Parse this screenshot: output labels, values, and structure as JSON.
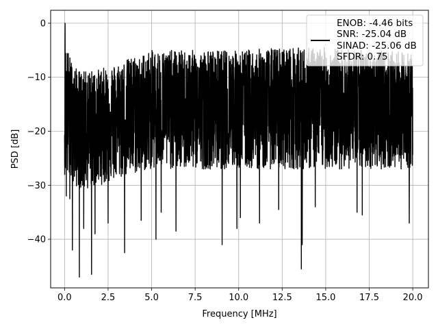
{
  "chart_data": {
    "type": "line",
    "title": "",
    "xlabel": "Frequency [MHz]",
    "ylabel": "PSD [dB]",
    "xlim": [
      -0.8,
      20.9
    ],
    "ylim": [
      -49.0,
      2.4
    ],
    "xticks": [
      0.0,
      2.5,
      5.0,
      7.5,
      10.0,
      12.5,
      15.0,
      17.5,
      20.0
    ],
    "xtick_labels": [
      "0.0",
      "2.5",
      "5.0",
      "7.5",
      "10.0",
      "12.5",
      "15.0",
      "17.5",
      "20.0"
    ],
    "yticks": [
      0,
      -10,
      -20,
      -30,
      -40
    ],
    "ytick_labels": [
      "0",
      "−10",
      "−20",
      "−30",
      "−40"
    ],
    "grid": true,
    "legend_position": "top-right",
    "legend": {
      "lines": [
        "ENOB: -4.46 bits",
        "SNR: -25.04 dB",
        "SINAD: -25.06 dB",
        "SFDR: 0.75"
      ]
    },
    "series": [
      {
        "color": "#000000",
        "x_range": [
          0.0,
          20.0
        ],
        "band_envelope": {
          "x": [
            0.0,
            0.5,
            1.0,
            2.0,
            3.0,
            4.0,
            5.0,
            7.5,
            10.0,
            12.5,
            15.0,
            17.5,
            20.0
          ],
          "upper": [
            -3.0,
            -8.0,
            -9.0,
            -8.5,
            -7.5,
            -6.0,
            -5.0,
            -5.0,
            -5.0,
            -4.5,
            -4.5,
            -5.0,
            -5.5
          ],
          "lower": [
            -28.0,
            -30.0,
            -31.0,
            -30.0,
            -29.0,
            -28.0,
            -27.0,
            -27.0,
            -27.0,
            -27.0,
            -27.0,
            -27.0,
            -27.0
          ],
          "median": [
            -16.0,
            -17.5,
            -18.0,
            -17.5,
            -17.0,
            -16.5,
            -16.0,
            -16.0,
            -16.0,
            -15.5,
            -15.5,
            -15.5,
            -16.0
          ]
        },
        "peaks": [
          {
            "x": 0.03,
            "y": 0.0
          },
          {
            "x": 0.1,
            "y": -3.5
          },
          {
            "x": 0.25,
            "y": -9.0
          }
        ],
        "dips": [
          {
            "x": 0.1,
            "y": -32.0
          },
          {
            "x": 0.3,
            "y": -32.5
          },
          {
            "x": 0.45,
            "y": -42.0
          },
          {
            "x": 0.85,
            "y": -47.0
          },
          {
            "x": 1.1,
            "y": -38.0
          },
          {
            "x": 1.55,
            "y": -46.5
          },
          {
            "x": 1.75,
            "y": -39.0
          },
          {
            "x": 2.5,
            "y": -37.0
          },
          {
            "x": 3.45,
            "y": -42.5
          },
          {
            "x": 4.4,
            "y": -36.5
          },
          {
            "x": 5.25,
            "y": -40.0
          },
          {
            "x": 5.55,
            "y": -35.0
          },
          {
            "x": 6.4,
            "y": -38.5
          },
          {
            "x": 9.05,
            "y": -41.0
          },
          {
            "x": 9.9,
            "y": -38.0
          },
          {
            "x": 10.1,
            "y": -36.0
          },
          {
            "x": 11.2,
            "y": -37.0
          },
          {
            "x": 12.3,
            "y": -34.5
          },
          {
            "x": 13.6,
            "y": -45.5
          },
          {
            "x": 13.65,
            "y": -41.0
          },
          {
            "x": 14.4,
            "y": -34.0
          },
          {
            "x": 16.8,
            "y": -35.0
          },
          {
            "x": 17.1,
            "y": -35.5
          },
          {
            "x": 19.8,
            "y": -37.0
          }
        ]
      }
    ]
  }
}
